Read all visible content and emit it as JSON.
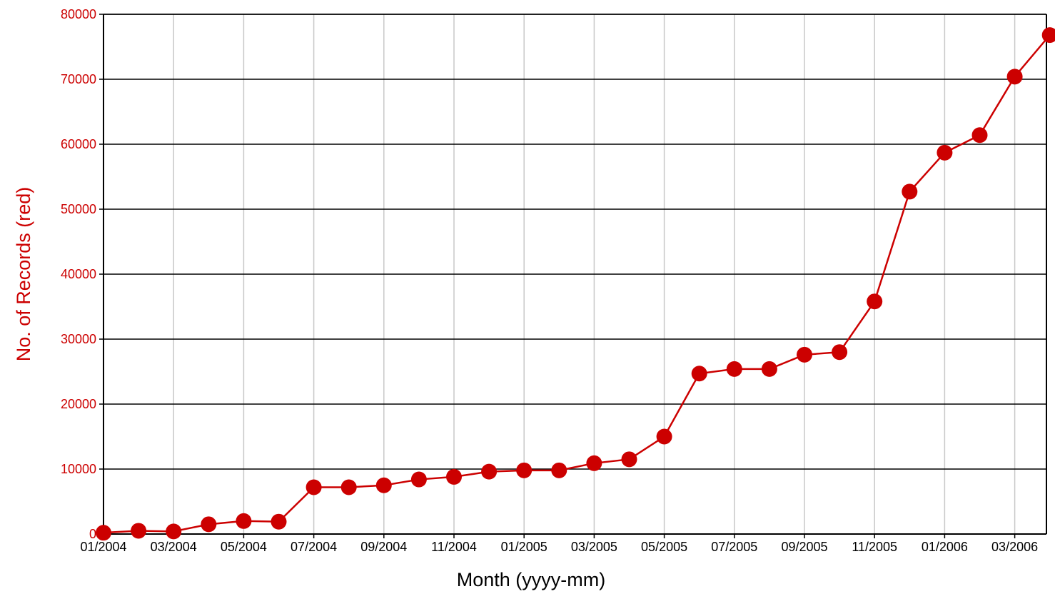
{
  "chart_data": {
    "type": "line",
    "xlabel": "Month (yyyy-mm)",
    "ylabel": "No. of Records (red)",
    "ylim": [
      0,
      80000
    ],
    "y_ticks": [
      "0",
      "10000",
      "20000",
      "30000",
      "40000",
      "50000",
      "60000",
      "70000",
      "80000"
    ],
    "x_tick_labels": [
      "01/2004",
      "03/2004",
      "05/2004",
      "07/2004",
      "09/2004",
      "11/2004",
      "01/2005",
      "03/2005",
      "05/2005",
      "07/2005",
      "09/2005",
      "11/2005",
      "01/2006",
      "03/2006"
    ],
    "grid": true,
    "colors": {
      "series": "#cc0000",
      "axis_text": "#cc0000",
      "major_grid": "#000000",
      "minor_grid": "#c8c8c8"
    },
    "series": [
      {
        "x": [
          "2004-01",
          "2004-02",
          "2004-03",
          "2004-04",
          "2004-05",
          "2004-06",
          "2004-07",
          "2004-08",
          "2004-09",
          "2004-10",
          "2004-11",
          "2004-12",
          "2005-01",
          "2005-02",
          "2005-03",
          "2005-04",
          "2005-05",
          "2005-06",
          "2005-07",
          "2005-08",
          "2005-09",
          "2005-10",
          "2005-11",
          "2005-12",
          "2006-01",
          "2006-02",
          "2006-03",
          "2006-04"
        ],
        "values": [
          200,
          500,
          400,
          1500,
          2000,
          1900,
          7200,
          7200,
          7500,
          8400,
          8800,
          9600,
          9800,
          9800,
          10900,
          11500,
          15000,
          24700,
          25400,
          25400,
          27600,
          28000,
          35800,
          52700,
          58700,
          61400,
          70400,
          76800
        ]
      }
    ]
  }
}
